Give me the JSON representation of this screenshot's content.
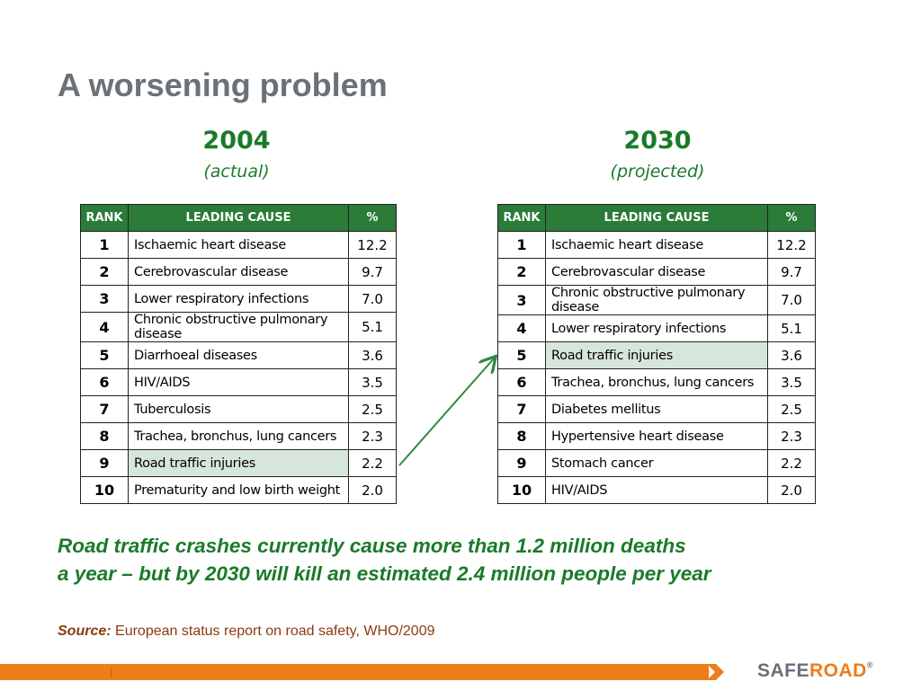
{
  "slide": {
    "title": "A worsening problem"
  },
  "left": {
    "year": "2004",
    "subtitle": "(actual)",
    "headers": [
      "RANK",
      "LEADING CAUSE",
      "%"
    ],
    "rows": [
      {
        "rank": "1",
        "cause": "Ischaemic heart disease",
        "pct": "12.2"
      },
      {
        "rank": "2",
        "cause": "Cerebrovascular disease",
        "pct": "9.7"
      },
      {
        "rank": "3",
        "cause": "Lower respiratory infections",
        "pct": "7.0"
      },
      {
        "rank": "4",
        "cause": "Chronic obstructive pulmonary disease",
        "pct": "5.1"
      },
      {
        "rank": "5",
        "cause": "Diarrhoeal diseases",
        "pct": "3.6"
      },
      {
        "rank": "6",
        "cause": "HIV/AIDS",
        "pct": "3.5"
      },
      {
        "rank": "7",
        "cause": "Tuberculosis",
        "pct": "2.5"
      },
      {
        "rank": "8",
        "cause": "Trachea, bronchus, lung cancers",
        "pct": "2.3"
      },
      {
        "rank": "9",
        "cause": "Road traffic injuries",
        "pct": "2.2",
        "highlight": true
      },
      {
        "rank": "10",
        "cause": "Prematurity and low birth weight",
        "pct": "2.0"
      }
    ]
  },
  "right": {
    "year": "2030",
    "subtitle": "(projected)",
    "headers": [
      "RANK",
      "LEADING CAUSE",
      "%"
    ],
    "rows": [
      {
        "rank": "1",
        "cause": "Ischaemic heart disease",
        "pct": "12.2"
      },
      {
        "rank": "2",
        "cause": "Cerebrovascular disease",
        "pct": "9.7"
      },
      {
        "rank": "3",
        "cause": "Chronic obstructive pulmonary disease",
        "pct": "7.0"
      },
      {
        "rank": "4",
        "cause": "Lower respiratory infections",
        "pct": "5.1"
      },
      {
        "rank": "5",
        "cause": "Road traffic injuries",
        "pct": "3.6",
        "highlight": true
      },
      {
        "rank": "6",
        "cause": "Trachea, bronchus, lung cancers",
        "pct": "3.5"
      },
      {
        "rank": "7",
        "cause": "Diabetes mellitus",
        "pct": "2.5"
      },
      {
        "rank": "8",
        "cause": "Hypertensive heart disease",
        "pct": "2.3"
      },
      {
        "rank": "9",
        "cause": "Stomach cancer",
        "pct": "2.2"
      },
      {
        "rank": "10",
        "cause": "HIV/AIDS",
        "pct": "2.0"
      }
    ]
  },
  "statement": {
    "line1": "Road traffic crashes currently cause more than 1.2 million deaths",
    "line2": "a year – but by 2030 will kill an estimated 2.4 million people per year"
  },
  "source": {
    "label": "Source:",
    "text": "European status report on road safety, WHO/2009"
  },
  "footer": {
    "logo_part1": "SAFE",
    "logo_part2": "ROAD",
    "logo_mark": "®"
  },
  "colors": {
    "title_gray": "#6b7178",
    "accent_green": "#1a7a2a",
    "header_green": "#2b7b39",
    "highlight_green": "#d7e6da",
    "footer_orange": "#ee7d1c"
  }
}
